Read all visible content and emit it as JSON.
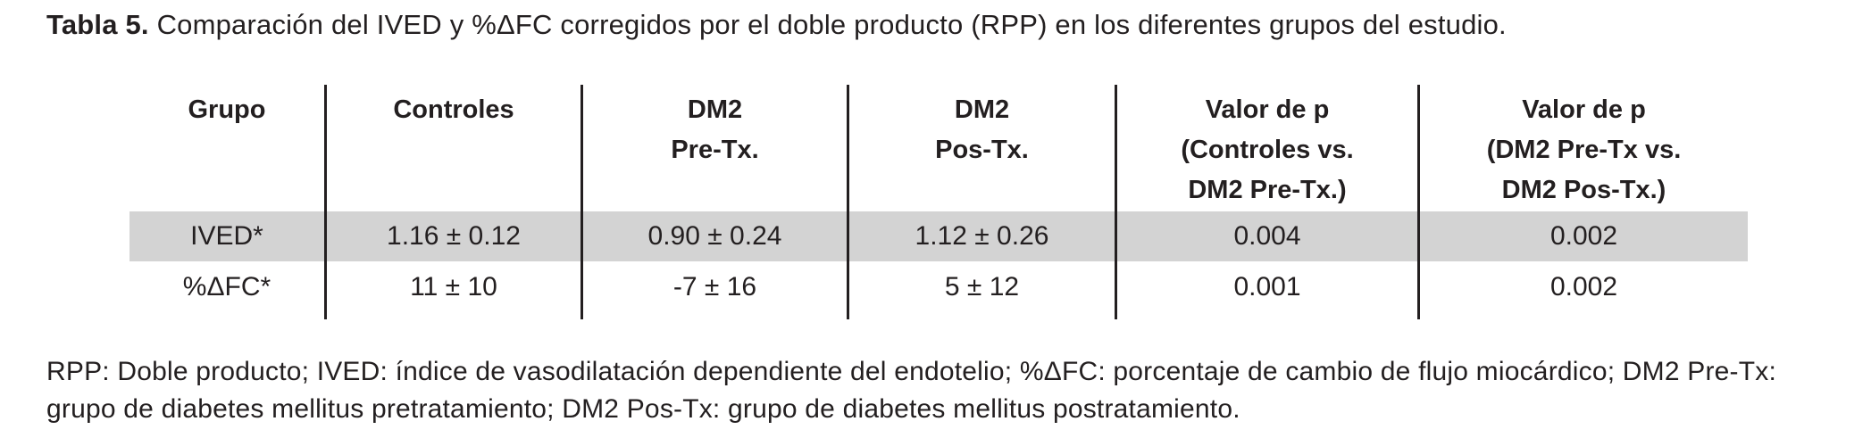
{
  "title": {
    "label": "Tabla 5.",
    "text": "Comparación del IVED y %ΔFC corregidos por el doble producto (RPP) en los diferentes grupos del estudio."
  },
  "table": {
    "columns": [
      {
        "label": "Grupo"
      },
      {
        "label": "Controles"
      },
      {
        "label": "DM2\nPre-Tx."
      },
      {
        "label": "DM2\nPos-Tx."
      },
      {
        "label": "Valor de p\n(Controles vs.\nDM2 Pre-Tx.)"
      },
      {
        "label": "Valor de p\n(DM2 Pre-Tx vs.\nDM2 Pos-Tx.)"
      }
    ],
    "rows": [
      {
        "highlighted": true,
        "cells": [
          "IVED*",
          "1.16 ± 0.12",
          "0.90 ± 0.24",
          "1.12 ± 0.26",
          "0.004",
          "0.002"
        ]
      },
      {
        "highlighted": false,
        "cells": [
          "%ΔFC*",
          "11 ± 10",
          "-7 ± 16",
          "5 ± 12",
          "0.001",
          "0.002"
        ]
      }
    ]
  },
  "footnote": {
    "lines": [
      "RPP: Doble producto; IVED: índice de vasodilatación dependiente del endotelio; %ΔFC: porcentaje de cambio de flujo miocárdico; DM2 Pre-Tx:",
      "grupo de diabetes mellitus pretratamiento; DM2 Pos-Tx: grupo de diabetes mellitus postratamiento."
    ]
  },
  "colors": {
    "highlight_row": "#d3d3d3",
    "text": "#231f20",
    "rule": "#231f20",
    "background": "#ffffff"
  }
}
